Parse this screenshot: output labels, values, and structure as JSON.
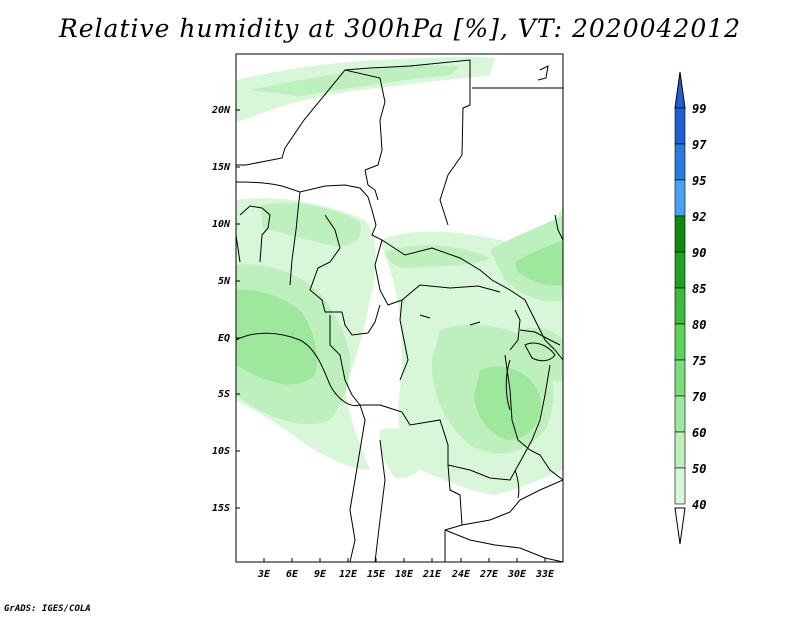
{
  "title": "Relative humidity at 300hPa [%], VT: 2020042012",
  "lat_labels": [
    "20N",
    "15N",
    "10N",
    "5N",
    "EQ",
    "5S",
    "10S",
    "15S"
  ],
  "lon_labels": [
    "3E",
    "6E",
    "9E",
    "12E",
    "15E",
    "18E",
    "21E",
    "24E",
    "27E",
    "30E",
    "33E"
  ],
  "colorbar": {
    "labels": [
      "99",
      "97",
      "95",
      "92",
      "90",
      "85",
      "80",
      "75",
      "70",
      "60",
      "50",
      "40"
    ],
    "colors": [
      "#1f5fd6",
      "#2a7ae0",
      "#4aa3ee",
      "#0f8a0f",
      "#22a022",
      "#3cbc3c",
      "#5cd25c",
      "#7ade7a",
      "#9ee89e",
      "#bdf0bd",
      "#d8f6d8",
      "#eefbee"
    ]
  },
  "credit": "GrADS: IGES/COLA"
}
